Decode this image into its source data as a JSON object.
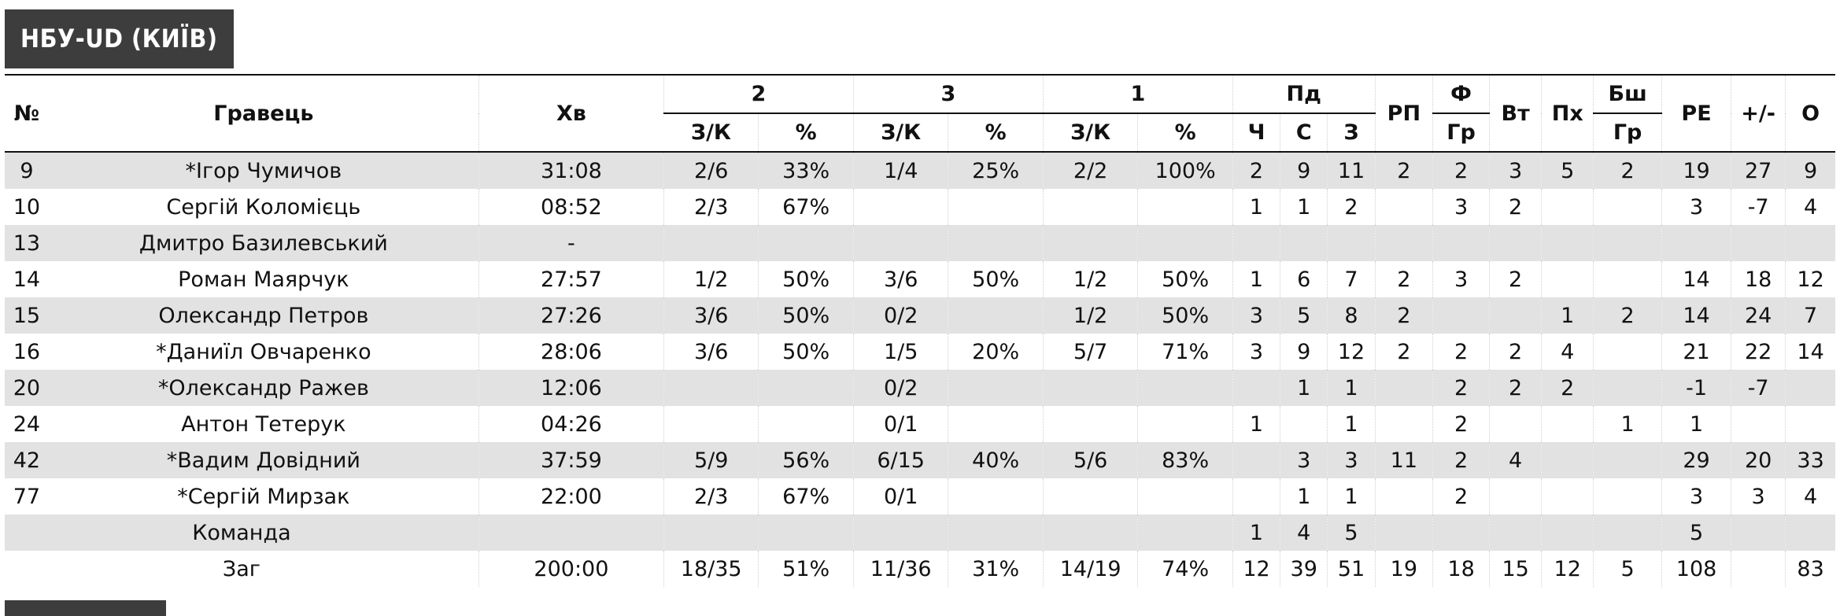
{
  "team": {
    "title": "НБУ-UD (КИЇВ)"
  },
  "header": {
    "num": "№",
    "player": "Гравець",
    "min": "Хв",
    "g2": "2",
    "g3": "3",
    "g1": "1",
    "reb": "Пд",
    "rp": "РП",
    "fouls": "Ф",
    "to": "Вт",
    "stl": "Пх",
    "blk": "Бш",
    "eff": "РЕ",
    "pm": "+/-",
    "pts": "О",
    "zk": "З/К",
    "pct": "%",
    "reb_o": "Ч",
    "reb_d": "С",
    "reb_t": "З",
    "fouls_sub": "Гр",
    "blk_sub": "Гр"
  },
  "rows": [
    {
      "num": "9",
      "name": "*Ігор Чумичов",
      "min": "31:08",
      "fg2": "2/6",
      "fg2p": "33%",
      "fg3": "1/4",
      "fg3p": "25%",
      "ft": "2/2",
      "ftp": "100%",
      "oreb": "2",
      "dreb": "9",
      "treb": "11",
      "ast": "2",
      "pf": "2",
      "to": "3",
      "stl": "5",
      "blk": "2",
      "eff": "19",
      "pm": "27",
      "pts": "9"
    },
    {
      "num": "10",
      "name": "Сергій Коломієць",
      "min": "08:52",
      "fg2": "2/3",
      "fg2p": "67%",
      "fg3": "",
      "fg3p": "",
      "ft": "",
      "ftp": "",
      "oreb": "1",
      "dreb": "1",
      "treb": "2",
      "ast": "",
      "pf": "3",
      "to": "2",
      "stl": "",
      "blk": "",
      "eff": "3",
      "pm": "-7",
      "pts": "4"
    },
    {
      "num": "13",
      "name": "Дмитро Базилевський",
      "min": "-",
      "fg2": "",
      "fg2p": "",
      "fg3": "",
      "fg3p": "",
      "ft": "",
      "ftp": "",
      "oreb": "",
      "dreb": "",
      "treb": "",
      "ast": "",
      "pf": "",
      "to": "",
      "stl": "",
      "blk": "",
      "eff": "",
      "pm": "",
      "pts": ""
    },
    {
      "num": "14",
      "name": "Роман Маярчук",
      "min": "27:57",
      "fg2": "1/2",
      "fg2p": "50%",
      "fg3": "3/6",
      "fg3p": "50%",
      "ft": "1/2",
      "ftp": "50%",
      "oreb": "1",
      "dreb": "6",
      "treb": "7",
      "ast": "2",
      "pf": "3",
      "to": "2",
      "stl": "",
      "blk": "",
      "eff": "14",
      "pm": "18",
      "pts": "12"
    },
    {
      "num": "15",
      "name": "Олександр Петров",
      "min": "27:26",
      "fg2": "3/6",
      "fg2p": "50%",
      "fg3": "0/2",
      "fg3p": "",
      "ft": "1/2",
      "ftp": "50%",
      "oreb": "3",
      "dreb": "5",
      "treb": "8",
      "ast": "2",
      "pf": "",
      "to": "",
      "stl": "1",
      "blk": "2",
      "eff": "14",
      "pm": "24",
      "pts": "7"
    },
    {
      "num": "16",
      "name": "*Даниїл Овчаренко",
      "min": "28:06",
      "fg2": "3/6",
      "fg2p": "50%",
      "fg3": "1/5",
      "fg3p": "20%",
      "ft": "5/7",
      "ftp": "71%",
      "oreb": "3",
      "dreb": "9",
      "treb": "12",
      "ast": "2",
      "pf": "2",
      "to": "2",
      "stl": "4",
      "blk": "",
      "eff": "21",
      "pm": "22",
      "pts": "14"
    },
    {
      "num": "20",
      "name": "*Олександр Ражев",
      "min": "12:06",
      "fg2": "",
      "fg2p": "",
      "fg3": "0/2",
      "fg3p": "",
      "ft": "",
      "ftp": "",
      "oreb": "",
      "dreb": "1",
      "treb": "1",
      "ast": "",
      "pf": "2",
      "to": "2",
      "stl": "2",
      "blk": "",
      "eff": "-1",
      "pm": "-7",
      "pts": ""
    },
    {
      "num": "24",
      "name": "Антон Тетерук",
      "min": "04:26",
      "fg2": "",
      "fg2p": "",
      "fg3": "0/1",
      "fg3p": "",
      "ft": "",
      "ftp": "",
      "oreb": "1",
      "dreb": "",
      "treb": "1",
      "ast": "",
      "pf": "2",
      "to": "",
      "stl": "",
      "blk": "1",
      "eff": "1",
      "pm": "",
      "pts": ""
    },
    {
      "num": "42",
      "name": "*Вадим Довідний",
      "min": "37:59",
      "fg2": "5/9",
      "fg2p": "56%",
      "fg3": "6/15",
      "fg3p": "40%",
      "ft": "5/6",
      "ftp": "83%",
      "oreb": "",
      "dreb": "3",
      "treb": "3",
      "ast": "11",
      "pf": "2",
      "to": "4",
      "stl": "",
      "blk": "",
      "eff": "29",
      "pm": "20",
      "pts": "33"
    },
    {
      "num": "77",
      "name": "*Сергій Мирзак",
      "min": "22:00",
      "fg2": "2/3",
      "fg2p": "67%",
      "fg3": "0/1",
      "fg3p": "",
      "ft": "",
      "ftp": "",
      "oreb": "",
      "dreb": "1",
      "treb": "1",
      "ast": "",
      "pf": "2",
      "to": "",
      "stl": "",
      "blk": "",
      "eff": "3",
      "pm": "3",
      "pts": "4"
    }
  ],
  "team_row": {
    "label": "Команда",
    "oreb": "1",
    "dreb": "4",
    "treb": "5",
    "eff": "5"
  },
  "totals": {
    "label": "Заг",
    "min": "200:00",
    "fg2": "18/35",
    "fg2p": "51%",
    "fg3": "11/36",
    "fg3p": "31%",
    "ft": "14/19",
    "ftp": "74%",
    "oreb": "12",
    "dreb": "39",
    "treb": "51",
    "ast": "19",
    "pf": "18",
    "to": "15",
    "stl": "12",
    "blk": "5",
    "eff": "108",
    "pm": "",
    "pts": "83"
  }
}
